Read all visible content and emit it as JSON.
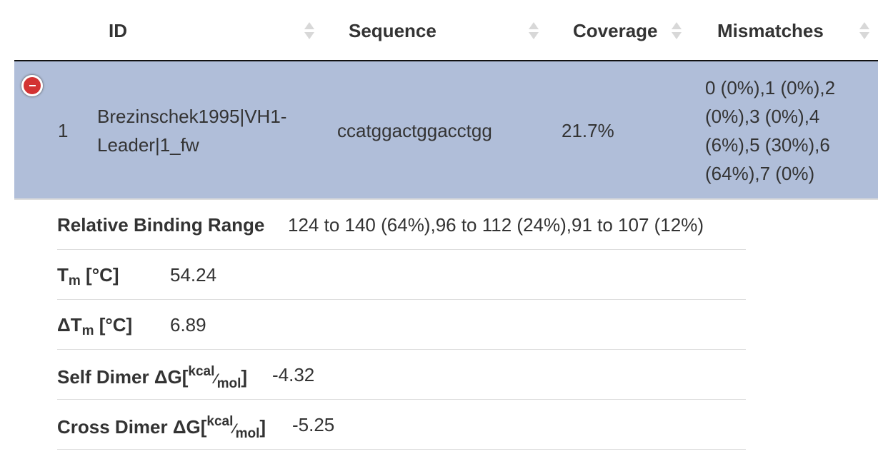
{
  "table": {
    "columns": [
      {
        "label": "ID"
      },
      {
        "label": "Sequence"
      },
      {
        "label": "Coverage"
      },
      {
        "label": "Mismatches"
      }
    ],
    "selected_row": {
      "index": "1",
      "id": "Brezinschek1995|VH1-Leader|1_fw",
      "id_lines": [
        "Brezinschek1995|VH1-",
        "Leader|1_fw"
      ],
      "sequence": "ccatggactggacctgg",
      "coverage": "21.7%",
      "mismatches_lines": [
        "0 (0%),1 (0%),2",
        "(0%),3 (0%),4",
        "(6%),5 (30%),6",
        "(64%),7 (0%)"
      ]
    }
  },
  "details": {
    "binding_range": {
      "label": "Relative Binding Range",
      "value": "124 to 140 (64%),96 to 112 (24%),91 to 107 (12%)"
    },
    "tm": {
      "label_main": "T",
      "label_sub": "m",
      "label_unit": "[°C]",
      "value": "54.24"
    },
    "delta_tm": {
      "label_main": "ΔT",
      "label_sub": "m",
      "label_unit": "[°C]",
      "value": "6.89"
    },
    "self_dimer": {
      "label": "Self Dimer ΔG[",
      "unit_num": "kcal",
      "unit_den": "mol",
      "label_close": "]",
      "value": "-4.32"
    },
    "cross_dimer": {
      "label": "Cross Dimer ΔG[",
      "unit_num": "kcal",
      "unit_den": "mol",
      "label_close": "]",
      "value": "-5.25"
    }
  },
  "colors": {
    "selected_row_bg": "#b0bed9",
    "toggle_red": "#d33333"
  }
}
